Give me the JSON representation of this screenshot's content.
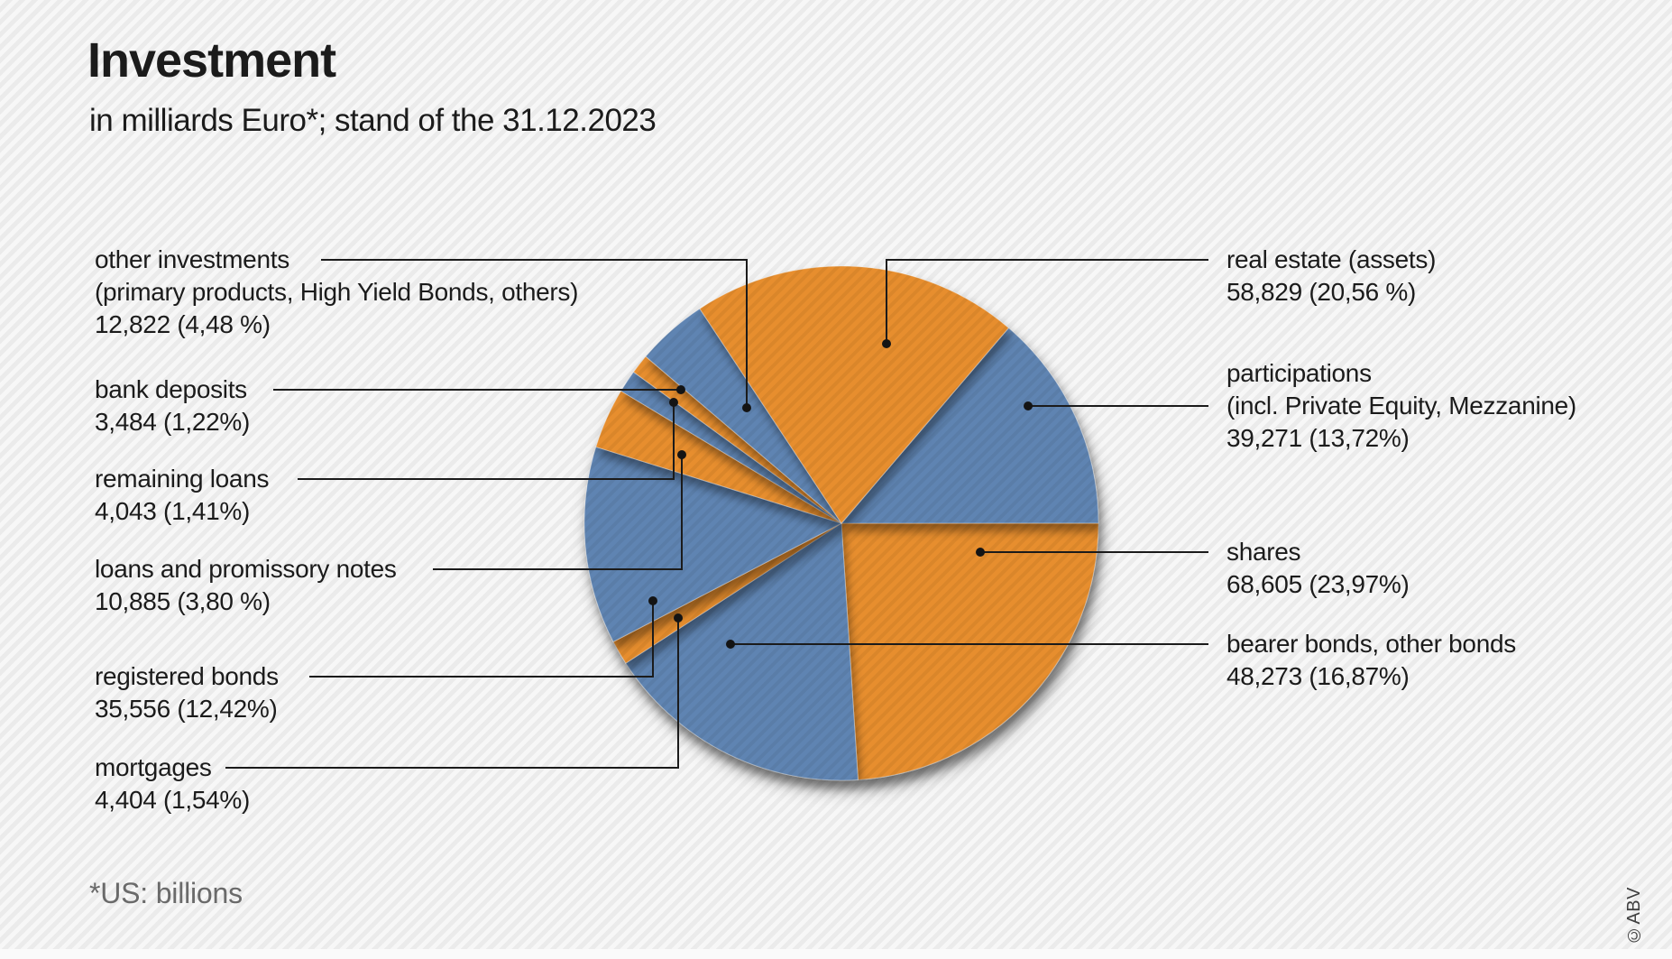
{
  "header": {
    "title": "Investment",
    "subtitle": "in milliards Euro*; stand of the 31.12.2023"
  },
  "footnote": "*US: billions",
  "copyright": "©ABV",
  "colors": {
    "orange": "#E78E2F",
    "blue": "#5F84B2",
    "leader_line": "#1b1b1b",
    "text": "#1b1b1b",
    "muted_text": "#6a6a6a",
    "background": "#f2f2f2"
  },
  "chart_data": {
    "type": "pie",
    "title": "Investment",
    "subtitle": "in milliards Euro*; stand of the 31.12.2023",
    "unit": "milliards Euro",
    "start_angle": "3 o'clock, clockwise",
    "legend_position": "callout labels with leader lines",
    "slices": [
      {
        "id": "shares",
        "label": "shares",
        "sublabel": "",
        "value": 68605,
        "value_text": "68,605",
        "pct": 23.97,
        "pct_text": "(23,97%)",
        "color": "orange"
      },
      {
        "id": "bearer-bonds",
        "label": "bearer bonds, other bonds",
        "sublabel": "",
        "value": 48273,
        "value_text": "48,273",
        "pct": 16.87,
        "pct_text": "(16,87%)",
        "color": "blue"
      },
      {
        "id": "mortgages",
        "label": "mortgages",
        "sublabel": "",
        "value": 4404,
        "value_text": "4,404",
        "pct": 1.54,
        "pct_text": "(1,54%)",
        "color": "orange"
      },
      {
        "id": "registered-bonds",
        "label": "registered bonds",
        "sublabel": "",
        "value": 35556,
        "value_text": "35,556",
        "pct": 12.42,
        "pct_text": "(12,42%)",
        "color": "blue"
      },
      {
        "id": "loans-promissory",
        "label": "loans and promissory notes",
        "sublabel": "",
        "value": 10885,
        "value_text": "10,885",
        "pct": 3.8,
        "pct_text": "(3,80 %)",
        "color": "orange"
      },
      {
        "id": "remaining-loans",
        "label": "remaining loans",
        "sublabel": "",
        "value": 4043,
        "value_text": "4,043",
        "pct": 1.41,
        "pct_text": "(1,41%)",
        "color": "blue"
      },
      {
        "id": "bank-deposits",
        "label": "bank deposits",
        "sublabel": "",
        "value": 3484,
        "value_text": "3,484",
        "pct": 1.22,
        "pct_text": "(1,22%)",
        "color": "orange"
      },
      {
        "id": "other-investments",
        "label": "other investments",
        "sublabel": "(primary products, High Yield Bonds, others)",
        "value": 12822,
        "value_text": "12,822",
        "pct": 4.48,
        "pct_text": "(4,48 %)",
        "color": "blue"
      },
      {
        "id": "real-estate",
        "label": "real estate (assets)",
        "sublabel": "",
        "value": 58829,
        "value_text": "58,829",
        "pct": 20.56,
        "pct_text": "(20,56 %)",
        "color": "orange"
      },
      {
        "id": "participations",
        "label": "participations",
        "sublabel": "(incl. Private Equity, Mezzanine)",
        "value": 39271,
        "value_text": "39,271",
        "pct": 13.72,
        "pct_text": "(13,72%)",
        "color": "blue"
      }
    ]
  }
}
